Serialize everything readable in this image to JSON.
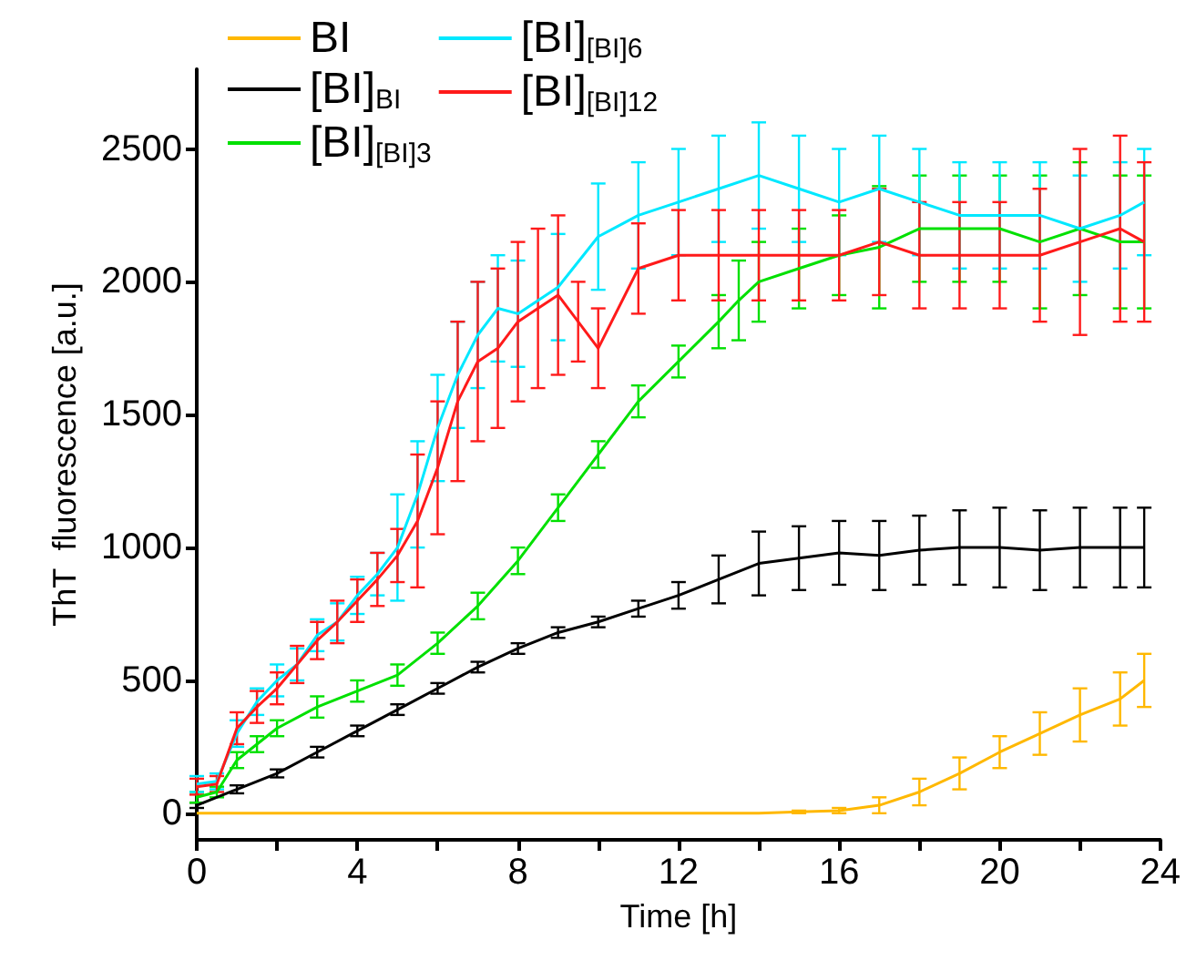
{
  "chart_data": {
    "type": "line",
    "xlabel": "Time [h]",
    "ylabel": "ThT  fluorescence [a.u.]",
    "xlim": [
      0,
      24
    ],
    "ylim": [
      -100,
      2800
    ],
    "xticks": [
      0,
      {
        "value": 2,
        "label": null
      },
      4,
      {
        "value": 6,
        "label": null
      },
      8,
      {
        "value": 10,
        "label": null
      },
      12,
      {
        "value": 14,
        "label": null
      },
      16,
      {
        "value": 18,
        "label": null
      },
      20,
      {
        "value": 22,
        "label": null
      },
      24
    ],
    "yticks": [
      0,
      500,
      1000,
      1500,
      2000,
      2500
    ],
    "grid": false,
    "legend": "top left",
    "marker": "none",
    "line_style": "solid",
    "series": [
      {
        "name": "BI",
        "color": "#ffb800",
        "x": [
          0,
          2,
          4,
          6,
          8,
          10,
          12,
          14,
          15,
          16,
          17,
          18,
          19,
          20,
          21,
          22,
          23,
          23.6
        ],
        "values": [
          0,
          0,
          0,
          0,
          0,
          0,
          0,
          0,
          5,
          10,
          30,
          80,
          150,
          230,
          300,
          370,
          430,
          500
        ],
        "errors": [
          null,
          null,
          null,
          null,
          null,
          null,
          null,
          null,
          5,
          10,
          30,
          50,
          60,
          60,
          80,
          100,
          100,
          100
        ]
      },
      {
        "name": "[BI]$_{BI}$",
        "color": "#000000",
        "x": [
          0,
          1,
          2,
          3,
          4,
          5,
          6,
          7,
          8,
          9,
          10,
          11,
          12,
          13,
          14,
          15,
          16,
          17,
          18,
          19,
          20,
          21,
          22,
          23,
          23.6
        ],
        "values": [
          30,
          90,
          150,
          230,
          310,
          390,
          470,
          550,
          620,
          680,
          720,
          770,
          820,
          880,
          940,
          960,
          980,
          970,
          990,
          1000,
          1000,
          990,
          1000,
          1000,
          1000
        ],
        "errors": [
          10,
          15,
          15,
          20,
          20,
          20,
          20,
          20,
          20,
          20,
          20,
          30,
          50,
          90,
          120,
          120,
          120,
          130,
          130,
          140,
          150,
          150,
          150,
          150,
          150
        ]
      },
      {
        "name": "[BI]$_{[BI]3}$",
        "color": "#00e000",
        "x": [
          0,
          0.5,
          1,
          1.5,
          2,
          3,
          4,
          5,
          6,
          7,
          8,
          9,
          10,
          11,
          12,
          13,
          13.5,
          14,
          15,
          16,
          17,
          18,
          19,
          20,
          21,
          22,
          23,
          23.6
        ],
        "values": [
          60,
          80,
          200,
          260,
          320,
          400,
          460,
          520,
          640,
          780,
          950,
          1150,
          1350,
          1550,
          1700,
          1850,
          1930,
          2000,
          2050,
          2100,
          2130,
          2200,
          2200,
          2200,
          2150,
          2200,
          2150,
          2150
        ],
        "errors": [
          20,
          20,
          30,
          30,
          30,
          40,
          40,
          40,
          40,
          50,
          50,
          50,
          50,
          60,
          60,
          100,
          150,
          150,
          150,
          150,
          230,
          200,
          200,
          200,
          250,
          250,
          250,
          250
        ]
      },
      {
        "name": "[BI]$_{[BI]6}$",
        "color": "#00e8ff",
        "x": [
          0,
          0.5,
          1,
          1.5,
          2,
          2.5,
          3,
          3.5,
          4,
          4.5,
          5,
          5.5,
          6,
          6.5,
          7,
          7.5,
          8,
          9,
          10,
          11,
          12,
          13,
          14,
          15,
          16,
          17,
          18,
          19,
          20,
          21,
          22,
          23,
          23.6
        ],
        "values": [
          110,
          120,
          300,
          420,
          500,
          560,
          670,
          720,
          820,
          900,
          1000,
          1200,
          1450,
          1650,
          1800,
          1900,
          1880,
          1980,
          2170,
          2250,
          2300,
          2350,
          2400,
          2350,
          2300,
          2350,
          2300,
          2250,
          2250,
          2250,
          2200,
          2250,
          2300
        ],
        "errors": [
          30,
          30,
          50,
          50,
          60,
          60,
          60,
          70,
          70,
          80,
          200,
          200,
          200,
          200,
          200,
          200,
          200,
          200,
          200,
          200,
          200,
          200,
          200,
          200,
          200,
          200,
          200,
          200,
          200,
          200,
          200,
          200,
          200
        ]
      },
      {
        "name": "[BI]$_{[BI]12}$",
        "color": "#ff1a1a",
        "x": [
          0,
          0.5,
          1,
          1.5,
          2,
          2.5,
          3,
          3.5,
          4,
          4.5,
          5,
          5.5,
          6,
          6.5,
          7,
          7.5,
          8,
          8.5,
          9,
          9.5,
          10,
          11,
          12,
          13,
          14,
          15,
          16,
          17,
          18,
          19,
          20,
          21,
          22,
          23,
          23.6
        ],
        "values": [
          100,
          110,
          320,
          400,
          470,
          560,
          650,
          720,
          800,
          880,
          970,
          1100,
          1300,
          1550,
          1700,
          1750,
          1850,
          1900,
          1950,
          1850,
          1750,
          2050,
          2100,
          2100,
          2100,
          2100,
          2100,
          2150,
          2100,
          2100,
          2100,
          2100,
          2150,
          2200,
          2150
        ],
        "errors": [
          30,
          30,
          60,
          60,
          60,
          70,
          70,
          80,
          80,
          100,
          100,
          250,
          250,
          300,
          300,
          300,
          300,
          300,
          300,
          150,
          150,
          170,
          170,
          170,
          170,
          170,
          170,
          200,
          200,
          200,
          200,
          250,
          350,
          350,
          300
        ]
      }
    ]
  }
}
